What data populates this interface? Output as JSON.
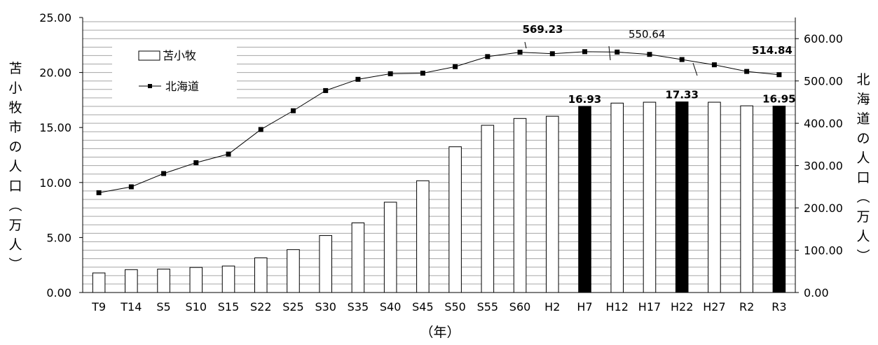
{
  "chart_data": {
    "type": "bar+line",
    "categories": [
      "T9",
      "T14",
      "S5",
      "S10",
      "S15",
      "S22",
      "S25",
      "S30",
      "S35",
      "S40",
      "S45",
      "S50",
      "S55",
      "S60",
      "H2",
      "H7",
      "H12",
      "H17",
      "H22",
      "H27",
      "R2",
      "R3"
    ],
    "series": [
      {
        "name": "苫小牧",
        "type": "bar",
        "axis": "left",
        "values": [
          1.78,
          2.08,
          2.13,
          2.28,
          2.41,
          3.15,
          3.9,
          5.18,
          6.33,
          8.21,
          10.16,
          13.25,
          15.2,
          15.82,
          16.02,
          16.93,
          17.22,
          17.3,
          17.33,
          17.3,
          16.97,
          16.95
        ],
        "highlighted": [
          "H7",
          "H22",
          "R3"
        ],
        "highlight_color": "#000000",
        "color": "#ffffff"
      },
      {
        "name": "北海道",
        "type": "line",
        "axis": "right",
        "values": [
          235.9,
          249.8,
          281.2,
          306.8,
          327.2,
          385.3,
          429.6,
          477.3,
          503.9,
          517.1,
          518.4,
          533.8,
          557.6,
          567.9,
          564.4,
          569.23,
          568.3,
          562.8,
          550.64,
          538.2,
          522.5,
          514.84
        ],
        "color": "#000000"
      }
    ],
    "left_axis": {
      "label": "苫小牧市の人口（万人）",
      "ylim": [
        0,
        25
      ],
      "ticks": [
        "0.00",
        "5.00",
        "10.00",
        "15.00",
        "20.00",
        "25.00"
      ]
    },
    "right_axis": {
      "label": "北海道の人口（万人）",
      "ylim": [
        0,
        650
      ],
      "ticks": [
        "0.00",
        "100.00",
        "200.00",
        "300.00",
        "400.00",
        "500.00",
        "600.00"
      ]
    },
    "xlabel": "（年）",
    "annotations": [
      {
        "text": "16.93",
        "category": "H7",
        "series": "苫小牧"
      },
      {
        "text": "17.33",
        "category": "H22",
        "series": "苫小牧"
      },
      {
        "text": "16.95",
        "category": "R3",
        "series": "苫小牧"
      },
      {
        "text": "569.23",
        "category": "H7",
        "series": "北海道"
      },
      {
        "text": "550.64",
        "category": "H22",
        "series": "北海道"
      },
      {
        "text": "514.84",
        "category": "R3",
        "series": "北海道"
      }
    ],
    "legend": {
      "placement": "top-left",
      "entries": [
        {
          "label": "苫小牧",
          "symbol": "bar"
        },
        {
          "label": "北海道",
          "symbol": "line-marker"
        }
      ]
    },
    "grid": true,
    "grid_color": "#a6a6a6"
  }
}
